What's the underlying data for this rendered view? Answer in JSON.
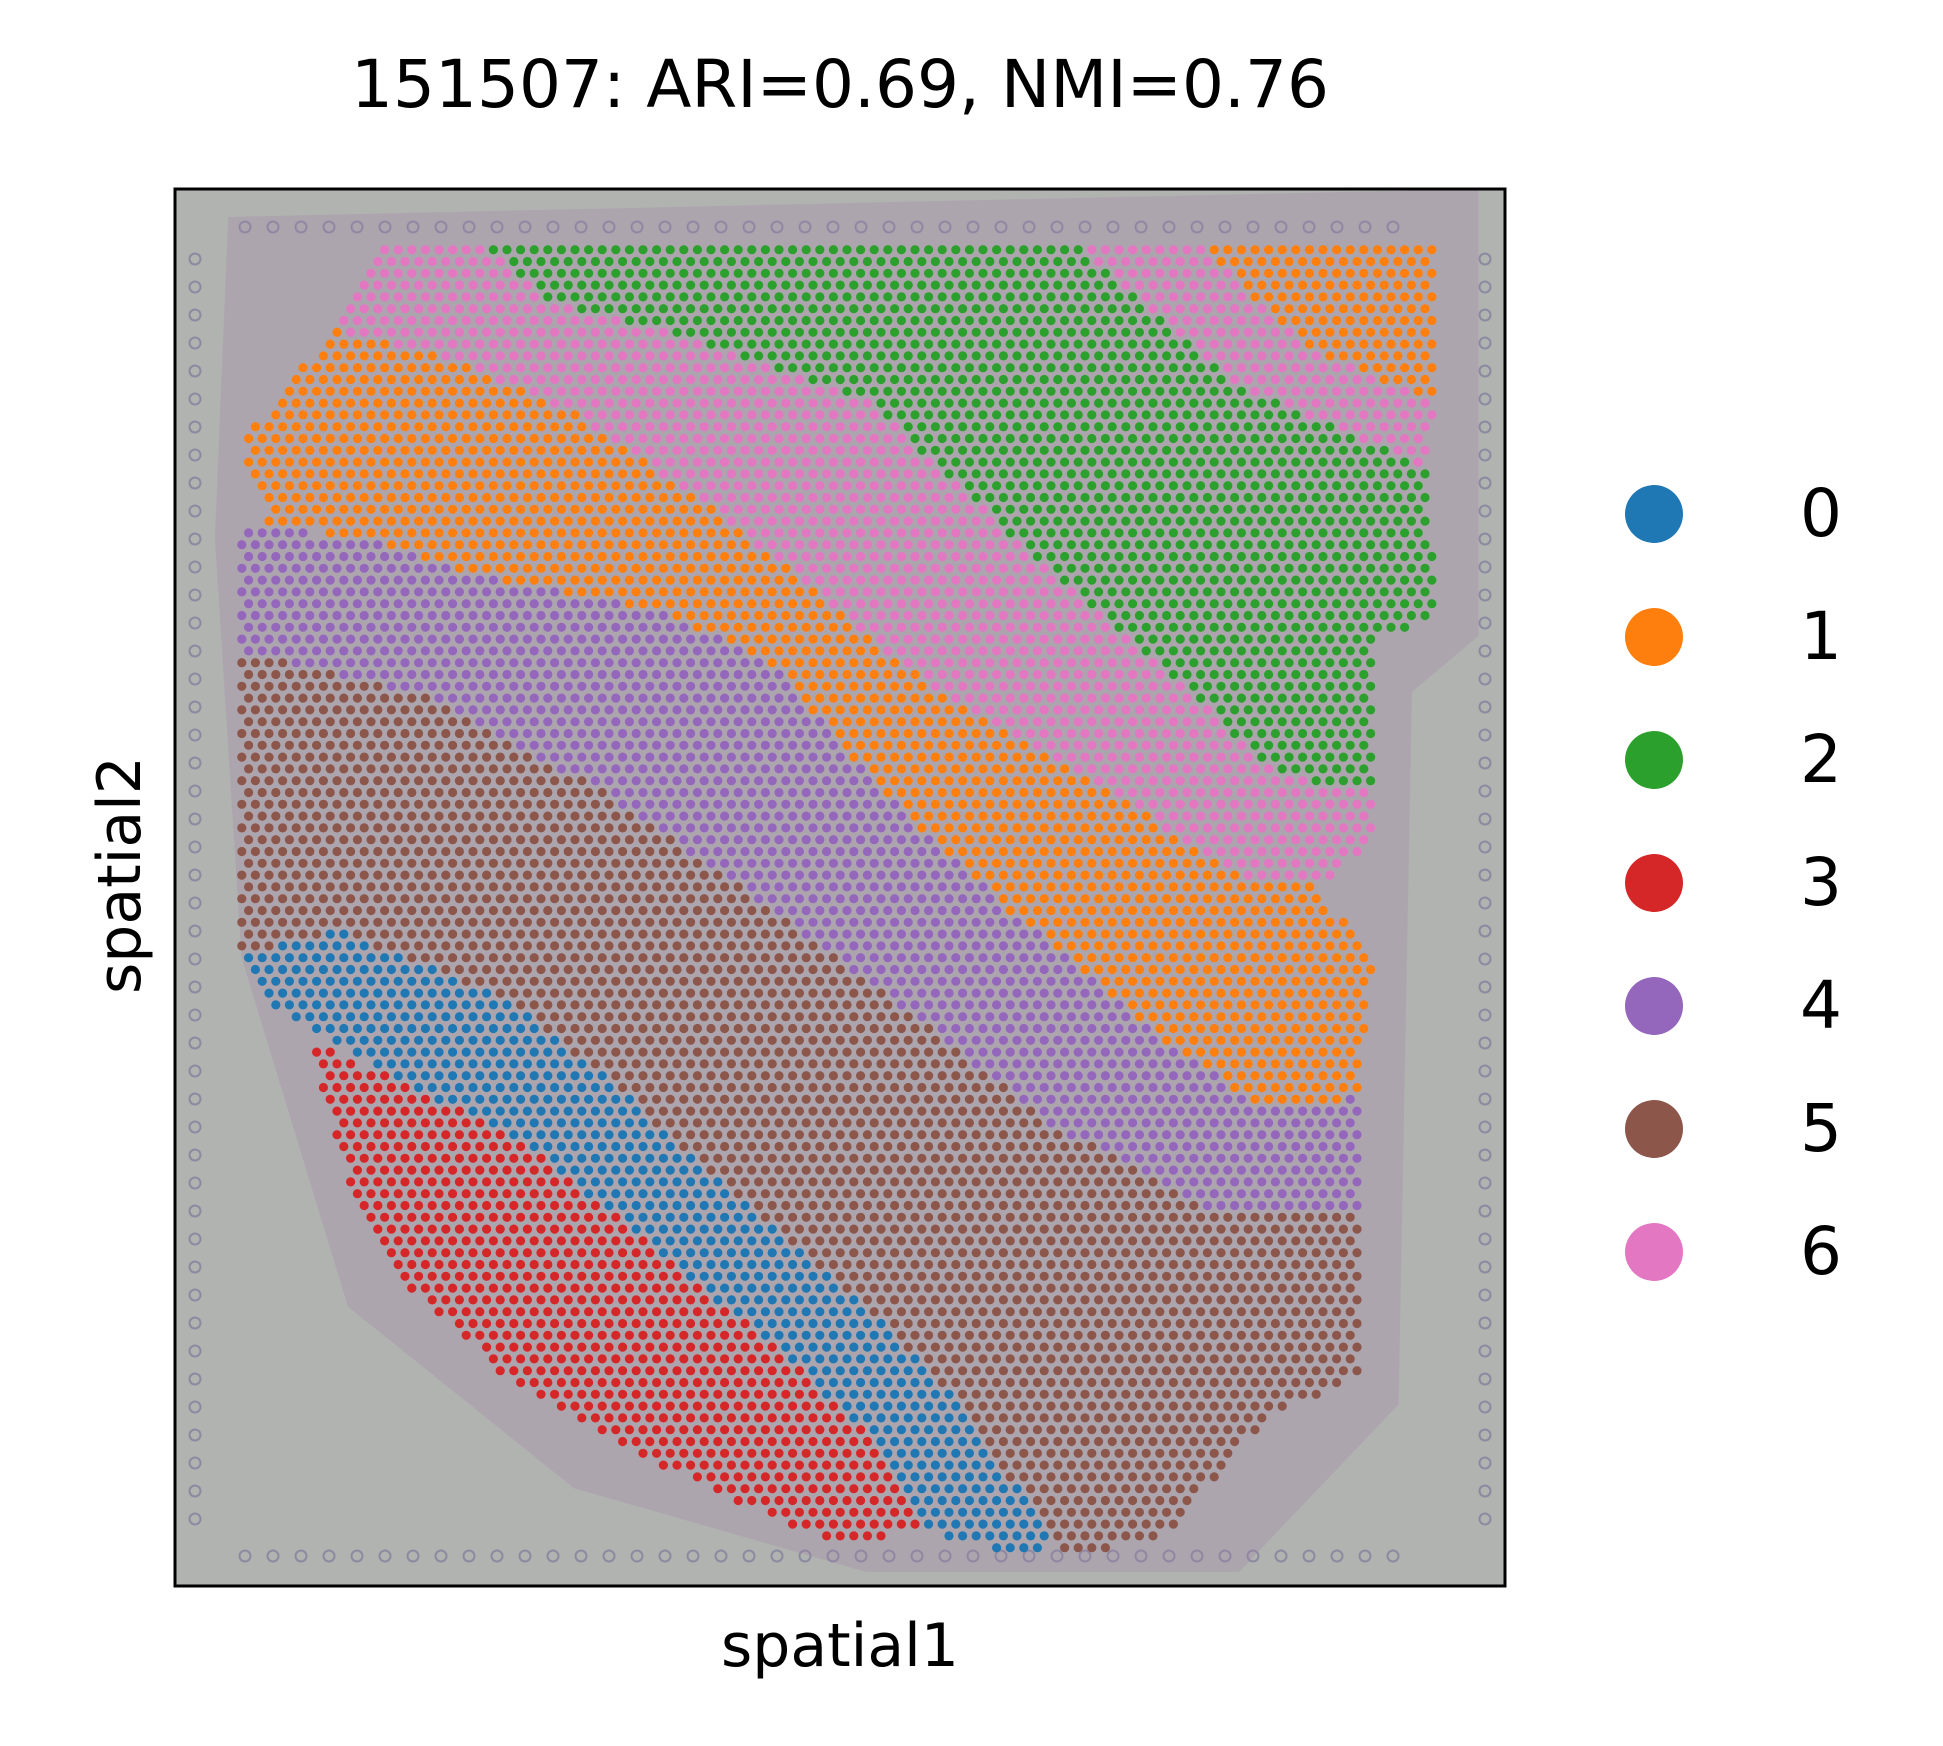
{
  "chart_data": {
    "type": "scatter",
    "title": "151507: ARI=0.69, NMI=0.76",
    "xlabel": "spatial1",
    "ylabel": "spatial2",
    "xticks": [],
    "yticks": [],
    "grid": false,
    "legend": {
      "placement": "right",
      "entries": [
        {
          "label": "0",
          "color": "#1f77b4"
        },
        {
          "label": "1",
          "color": "#ff7f0e"
        },
        {
          "label": "2",
          "color": "#2ca02c"
        },
        {
          "label": "3",
          "color": "#d62728"
        },
        {
          "label": "4",
          "color": "#9467bd"
        },
        {
          "label": "5",
          "color": "#8c564b"
        },
        {
          "label": "6",
          "color": "#e377c2"
        }
      ]
    },
    "background": "tissue histology image",
    "tissue_background_color": "#b1b3b1",
    "layout_note_regions": "clusters form diagonal bands running from upper-left to lower-right",
    "series": [
      {
        "name": "0",
        "color": "#1f77b4",
        "polygon": [
          [
            0.05,
            0.55
          ],
          [
            0.12,
            0.53
          ],
          [
            0.25,
            0.58
          ],
          [
            0.33,
            0.64
          ],
          [
            0.42,
            0.72
          ],
          [
            0.52,
            0.8
          ],
          [
            0.6,
            0.88
          ],
          [
            0.66,
            0.97
          ],
          [
            0.64,
            0.98
          ],
          [
            0.56,
            0.96
          ],
          [
            0.52,
            0.89
          ],
          [
            0.44,
            0.82
          ],
          [
            0.35,
            0.75
          ],
          [
            0.26,
            0.68
          ],
          [
            0.15,
            0.63
          ],
          [
            0.08,
            0.59
          ]
        ]
      },
      {
        "name": "1",
        "color": "#ff7f0e",
        "polygon": [
          [
            0.05,
            0.18
          ],
          [
            0.12,
            0.1
          ],
          [
            0.2,
            0.12
          ],
          [
            0.3,
            0.16
          ],
          [
            0.42,
            0.24
          ],
          [
            0.56,
            0.35
          ],
          [
            0.7,
            0.43
          ],
          [
            0.8,
            0.49
          ],
          [
            0.86,
            0.5
          ],
          [
            0.9,
            0.55
          ],
          [
            0.89,
            0.65
          ],
          [
            0.82,
            0.66
          ],
          [
            0.73,
            0.6
          ],
          [
            0.62,
            0.51
          ],
          [
            0.52,
            0.42
          ],
          [
            0.45,
            0.34
          ],
          [
            0.36,
            0.3
          ],
          [
            0.24,
            0.28
          ],
          [
            0.14,
            0.25
          ],
          [
            0.07,
            0.24
          ]
        ]
      },
      {
        "name": "1",
        "color": "#ff7f0e",
        "polygon": [
          [
            0.77,
            0.04
          ],
          [
            0.95,
            0.04
          ],
          [
            0.95,
            0.15
          ],
          [
            0.86,
            0.12
          ]
        ]
      },
      {
        "name": "2",
        "color": "#2ca02c",
        "polygon": [
          [
            0.23,
            0.04
          ],
          [
            0.68,
            0.04
          ],
          [
            0.8,
            0.14
          ],
          [
            0.94,
            0.2
          ],
          [
            0.95,
            0.31
          ],
          [
            0.9,
            0.32
          ],
          [
            0.9,
            0.43
          ],
          [
            0.83,
            0.42
          ],
          [
            0.74,
            0.34
          ],
          [
            0.62,
            0.24
          ],
          [
            0.52,
            0.15
          ],
          [
            0.36,
            0.1
          ],
          [
            0.28,
            0.08
          ]
        ]
      },
      {
        "name": "3",
        "color": "#d62728",
        "polygon": [
          [
            0.1,
            0.61
          ],
          [
            0.15,
            0.63
          ],
          [
            0.26,
            0.68
          ],
          [
            0.35,
            0.75
          ],
          [
            0.44,
            0.82
          ],
          [
            0.52,
            0.89
          ],
          [
            0.56,
            0.96
          ],
          [
            0.5,
            0.97
          ],
          [
            0.42,
            0.94
          ],
          [
            0.34,
            0.9
          ],
          [
            0.26,
            0.86
          ],
          [
            0.18,
            0.79
          ],
          [
            0.13,
            0.71
          ]
        ]
      },
      {
        "name": "4",
        "color": "#9467bd",
        "polygon": [
          [
            0.05,
            0.24
          ],
          [
            0.14,
            0.25
          ],
          [
            0.24,
            0.28
          ],
          [
            0.36,
            0.3
          ],
          [
            0.45,
            0.34
          ],
          [
            0.52,
            0.42
          ],
          [
            0.62,
            0.51
          ],
          [
            0.73,
            0.6
          ],
          [
            0.82,
            0.66
          ],
          [
            0.89,
            0.65
          ],
          [
            0.89,
            0.73
          ],
          [
            0.78,
            0.73
          ],
          [
            0.66,
            0.67
          ],
          [
            0.54,
            0.58
          ],
          [
            0.44,
            0.51
          ],
          [
            0.32,
            0.43
          ],
          [
            0.18,
            0.36
          ],
          [
            0.05,
            0.33
          ]
        ]
      },
      {
        "name": "5",
        "color": "#8c564b",
        "polygon": [
          [
            0.05,
            0.33
          ],
          [
            0.18,
            0.36
          ],
          [
            0.32,
            0.43
          ],
          [
            0.44,
            0.51
          ],
          [
            0.54,
            0.58
          ],
          [
            0.66,
            0.67
          ],
          [
            0.78,
            0.73
          ],
          [
            0.89,
            0.73
          ],
          [
            0.89,
            0.85
          ],
          [
            0.82,
            0.88
          ],
          [
            0.75,
            0.96
          ],
          [
            0.68,
            0.98
          ],
          [
            0.66,
            0.97
          ],
          [
            0.6,
            0.88
          ],
          [
            0.52,
            0.8
          ],
          [
            0.42,
            0.72
          ],
          [
            0.33,
            0.64
          ],
          [
            0.25,
            0.58
          ],
          [
            0.12,
            0.53
          ],
          [
            0.05,
            0.55
          ]
        ]
      },
      {
        "name": "6",
        "color": "#e377c2",
        "polygon": [
          [
            0.15,
            0.04
          ],
          [
            0.23,
            0.04
          ],
          [
            0.28,
            0.08
          ],
          [
            0.36,
            0.1
          ],
          [
            0.52,
            0.15
          ],
          [
            0.62,
            0.24
          ],
          [
            0.74,
            0.34
          ],
          [
            0.83,
            0.42
          ],
          [
            0.9,
            0.43
          ],
          [
            0.9,
            0.47
          ],
          [
            0.86,
            0.5
          ],
          [
            0.8,
            0.49
          ],
          [
            0.7,
            0.43
          ],
          [
            0.56,
            0.35
          ],
          [
            0.42,
            0.24
          ],
          [
            0.3,
            0.16
          ],
          [
            0.2,
            0.12
          ],
          [
            0.12,
            0.1
          ]
        ]
      },
      {
        "name": "6",
        "color": "#e377c2",
        "polygon": [
          [
            0.68,
            0.04
          ],
          [
            0.77,
            0.04
          ],
          [
            0.86,
            0.12
          ],
          [
            0.95,
            0.15
          ],
          [
            0.94,
            0.2
          ],
          [
            0.8,
            0.14
          ]
        ]
      }
    ]
  }
}
